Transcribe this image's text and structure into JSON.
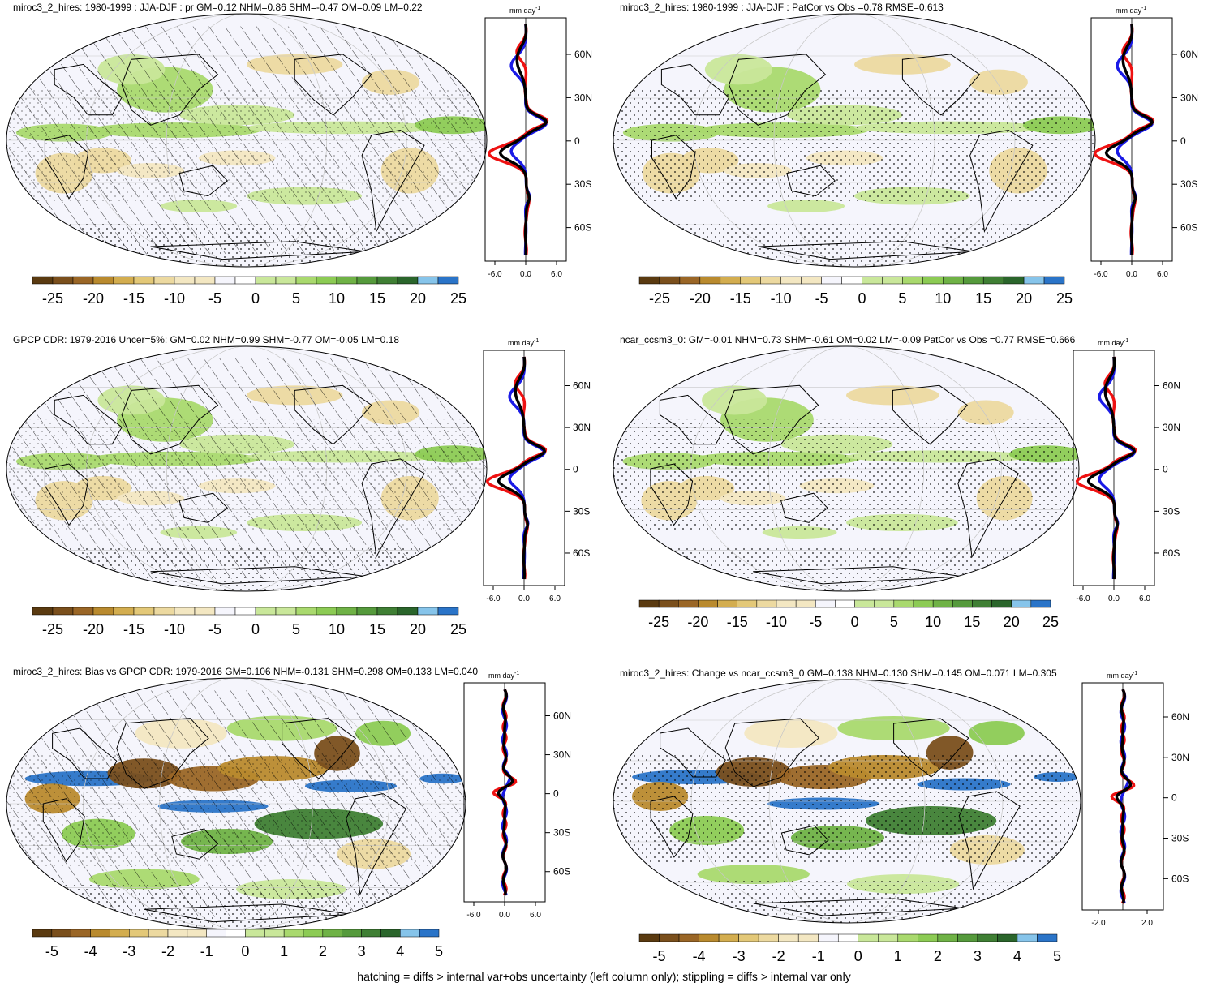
{
  "footer": "hatching = diffs > internal var+obs uncertainty (left column only); stippling = diffs > internal var only",
  "colors": {
    "palette": [
      "#5a3a10",
      "#7a4f1c",
      "#9a6626",
      "#b98a2e",
      "#d3ad4f",
      "#e3c878",
      "#ecd9a0",
      "#f3e7c2",
      "#f5f5fc",
      "#ffffff",
      "#c9e79a",
      "#a9d96e",
      "#8ccb54",
      "#6fb246",
      "#559a3c",
      "#3f7f34",
      "#2a652b",
      "#86c4ea",
      "#2a74c8"
    ],
    "zonal_blue": "#1a1ae6",
    "zonal_red": "#ee1111",
    "zonal_black": "#000000"
  },
  "chart_data": [
    {
      "type": "heatmap",
      "title": "miroc3_2_hires: 1980-1999 : JJA-DJF : pr GM=0.12 NHM=0.86 SHM=-0.47 OM=0.09 LM=0.22",
      "colorbar_ticks": [
        "-25",
        "-20",
        "-15",
        "-10",
        "-5",
        "0",
        "5",
        "10",
        "15",
        "20",
        "25"
      ],
      "overlay": "hatching+stippling",
      "zonal_profile": {
        "units": "mm day",
        "units_exp": "-1",
        "xticks": [
          "-6.0",
          "0.0",
          "6.0"
        ],
        "yticks": [
          "60N",
          "30N",
          "0",
          "30S",
          "60S"
        ]
      }
    },
    {
      "type": "heatmap",
      "title": "miroc3_2_hires: 1980-1999 : JJA-DJF : PatCor vs Obs =0.78 RMSE=0.613",
      "colorbar_ticks": [
        "-25",
        "-20",
        "-15",
        "-10",
        "-5",
        "0",
        "5",
        "10",
        "15",
        "20",
        "25"
      ],
      "overlay": "stippling",
      "zonal_profile": {
        "units": "mm day",
        "units_exp": "-1",
        "xticks": [
          "-6.0",
          "0.0",
          "6.0"
        ],
        "yticks": [
          "60N",
          "30N",
          "0",
          "30S",
          "60S"
        ]
      }
    },
    {
      "type": "heatmap",
      "title": "GPCP CDR: 1979-2016 Uncer=5%: GM=0.02 NHM=0.99 SHM=-0.77 OM=-0.05 LM=0.18",
      "colorbar_ticks": [
        "-25",
        "-20",
        "-15",
        "-10",
        "-5",
        "0",
        "5",
        "10",
        "15",
        "20",
        "25"
      ],
      "overlay": "hatching+stippling",
      "zonal_profile": {
        "units": "mm day",
        "units_exp": "-1",
        "xticks": [
          "-6.0",
          "0.0",
          "6.0"
        ],
        "yticks": [
          "60N",
          "30N",
          "0",
          "30S",
          "60S"
        ]
      }
    },
    {
      "type": "heatmap",
      "title": "ncar_ccsm3_0: GM=-0.01 NHM=0.73 SHM=-0.61 OM=0.02 LM=-0.09 PatCor vs Obs =0.77 RMSE=0.666",
      "colorbar_ticks": [
        "-25",
        "-20",
        "-15",
        "-10",
        "-5",
        "0",
        "5",
        "10",
        "15",
        "20",
        "25"
      ],
      "overlay": "stippling",
      "zonal_profile": {
        "units": "mm day",
        "units_exp": "-1",
        "xticks": [
          "-6.0",
          "0.0",
          "6.0"
        ],
        "yticks": [
          "60N",
          "30N",
          "0",
          "30S",
          "60S"
        ]
      }
    },
    {
      "type": "heatmap",
      "title": "miroc3_2_hires: Bias vs GPCP CDR: 1979-2016 GM=0.106 NHM=-0.131 SHM=0.298 OM=0.133 LM=0.040",
      "colorbar_ticks": [
        "-5",
        "-4",
        "-3",
        "-2",
        "-1",
        "0",
        "1",
        "2",
        "3",
        "4",
        "5"
      ],
      "overlay": "hatching+stippling",
      "zonal_profile": {
        "units": "mm day",
        "units_exp": "-1",
        "xticks": [
          "-6.0",
          "0.0",
          "6.0"
        ],
        "yticks": [
          "60N",
          "30N",
          "0",
          "30S",
          "60S"
        ]
      }
    },
    {
      "type": "heatmap",
      "title": "miroc3_2_hires: Change vs ncar_ccsm3_0 GM=0.138 NHM=0.130 SHM=0.145 OM=0.071 LM=0.305",
      "colorbar_ticks": [
        "-5",
        "-4",
        "-3",
        "-2",
        "-1",
        "0",
        "1",
        "2",
        "3",
        "4",
        "5"
      ],
      "overlay": "stippling",
      "zonal_profile": {
        "units": "mm day",
        "units_exp": "-1",
        "xticks": [
          "-2.0",
          "2.0"
        ],
        "yticks": [
          "60N",
          "30N",
          "0",
          "30S",
          "60S"
        ]
      }
    }
  ]
}
